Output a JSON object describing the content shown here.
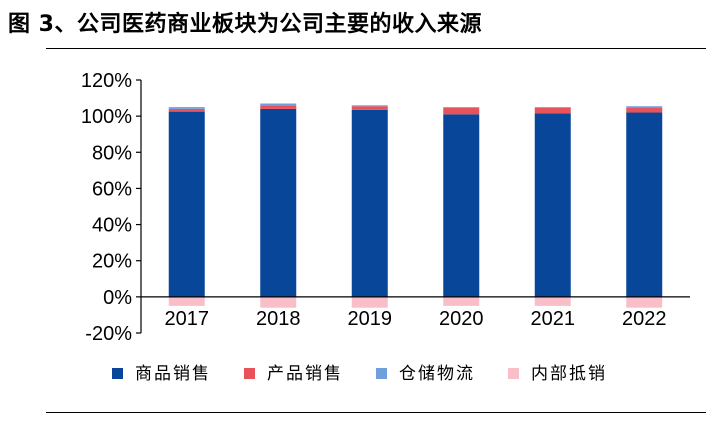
{
  "header": {
    "title": "图 3、公司医药商业板块为公司主要的收入来源"
  },
  "chart_data": {
    "type": "bar",
    "stacked": true,
    "categories": [
      "2017",
      "2018",
      "2019",
      "2020",
      "2021",
      "2022"
    ],
    "series": [
      {
        "name": "商品销售",
        "color": "#08469a",
        "values": [
          102.5,
          104,
          103.5,
          101,
          101.5,
          102
        ]
      },
      {
        "name": "产品销售",
        "color": "#e8525b",
        "values": [
          1.5,
          2,
          2,
          3.5,
          3,
          2.5
        ]
      },
      {
        "name": "仓储物流",
        "color": "#6fa0dd",
        "values": [
          1,
          1,
          0.5,
          0.5,
          0.5,
          1
        ]
      },
      {
        "name": "内部抵销",
        "color": "#f9bfc8",
        "values": [
          -5,
          -6,
          -6,
          -5,
          -5,
          -6
        ]
      }
    ],
    "yticks": [
      "-20%",
      "0%",
      "20%",
      "40%",
      "60%",
      "80%",
      "100%",
      "120%"
    ],
    "ylim": [
      -20,
      120
    ],
    "legend_position": "bottom",
    "grid": false
  }
}
